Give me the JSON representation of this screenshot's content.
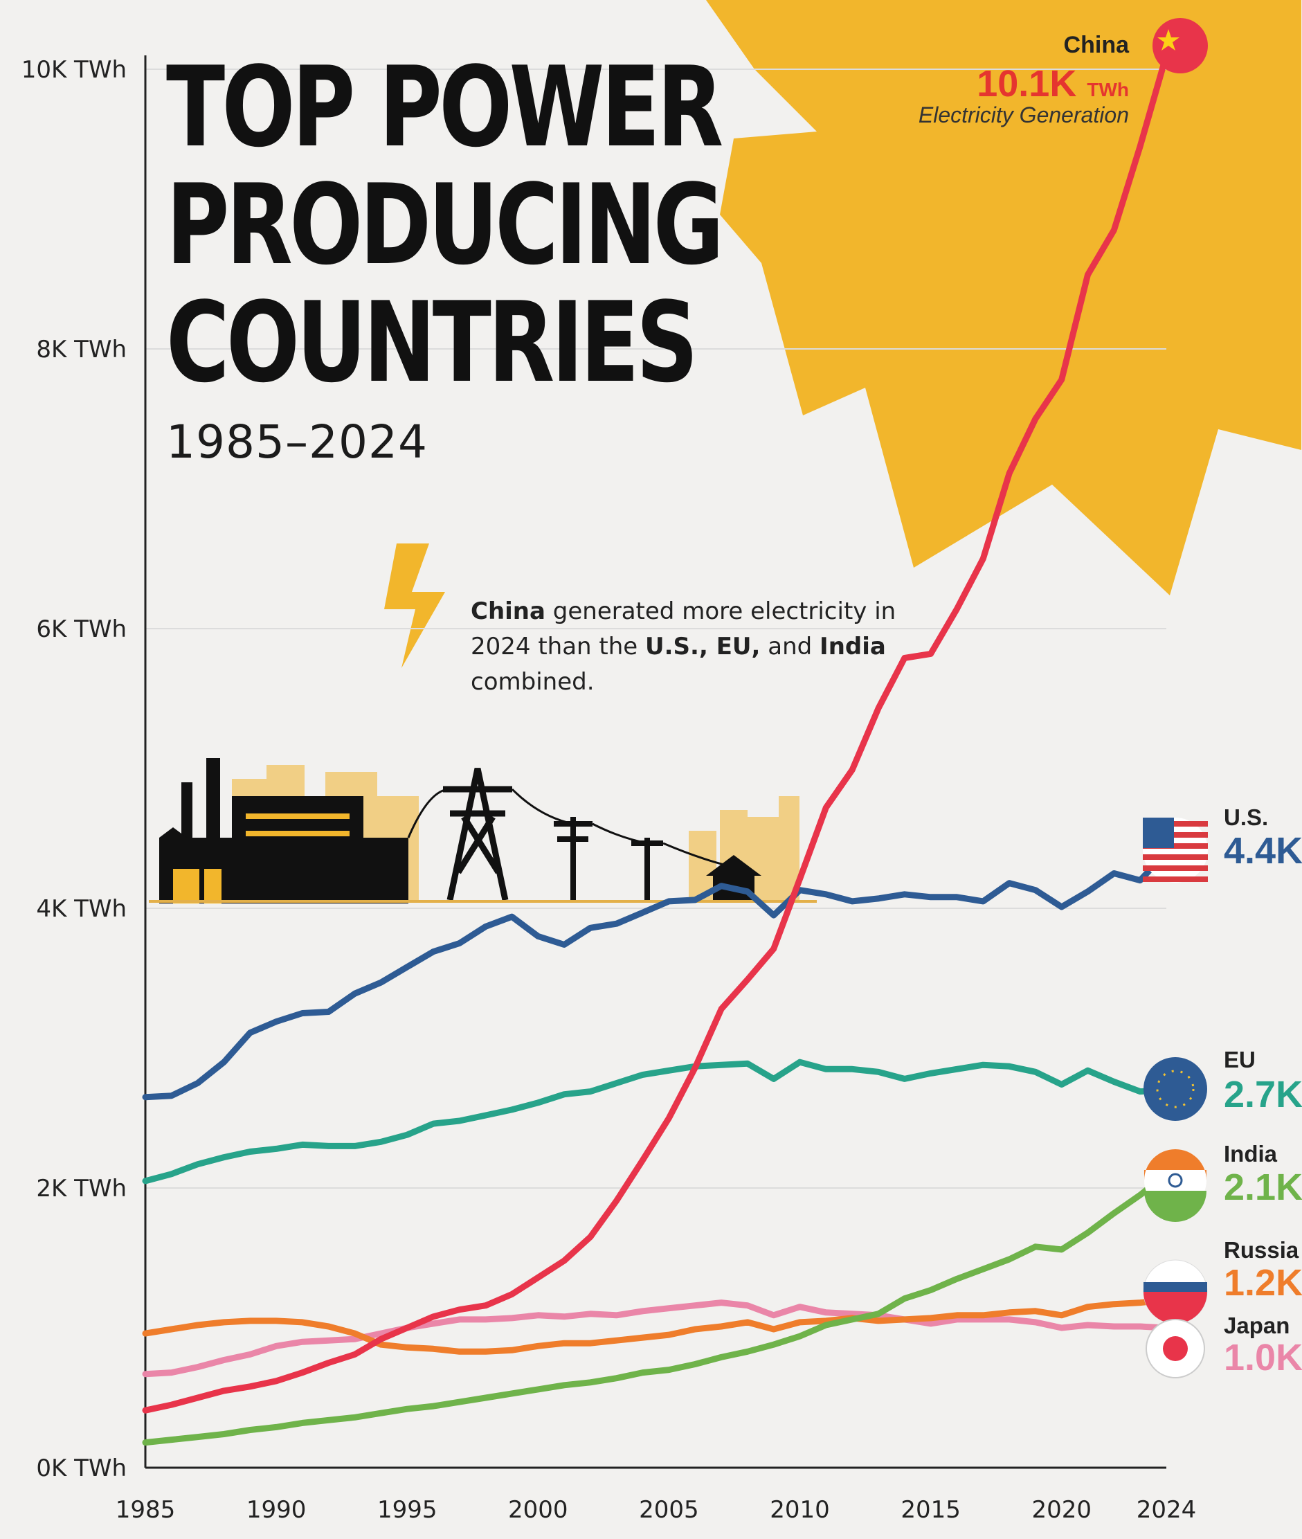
{
  "title_lines": [
    "TOP POWER",
    "PRODUCING",
    "COUNTRIES"
  ],
  "subtitle": "1985–2024",
  "callout": {
    "p1_bold": "China",
    "p1_text": " generated more electricity in 2024 than the ",
    "p2_bold": "U.S., EU,",
    "p2_text": " and ",
    "p3_bold": "India",
    "p3_text": " combined."
  },
  "china_label": {
    "name": "China",
    "value": "10.1K",
    "unit": "TWh",
    "note": "Electricity Generation"
  },
  "end_labels": [
    {
      "key": "us",
      "name": "U.S.",
      "value": "4.4K"
    },
    {
      "key": "eu",
      "name": "EU",
      "value": "2.7K"
    },
    {
      "key": "india",
      "name": "India",
      "value": "2.1K"
    },
    {
      "key": "russia",
      "name": "Russia",
      "value": "1.2K"
    },
    {
      "key": "japan",
      "name": "Japan",
      "value": "1.0K"
    }
  ],
  "icons": [
    "lightning-bolt-icon",
    "factory-icon",
    "power-pylon-icon",
    "utility-pole-icon",
    "house-icon",
    "china-flag-icon",
    "us-flag-icon",
    "eu-flag-icon",
    "india-flag-icon",
    "russia-flag-icon",
    "japan-flag-icon",
    "sun-burst-icon"
  ],
  "chart_data": {
    "type": "line",
    "title": "TOP POWER PRODUCING COUNTRIES",
    "subtitle": "1985–2024",
    "ylabel": "",
    "xlabel": "",
    "ylim": [
      0,
      10000
    ],
    "xlim": [
      1985,
      2024
    ],
    "yticks": [
      0,
      2000,
      4000,
      6000,
      8000,
      10000
    ],
    "ytick_labels": [
      "0K TWh",
      "2K TWh",
      "4K TWh",
      "6K TWh",
      "8K TWh",
      "10K TWh"
    ],
    "xticks": [
      1985,
      1990,
      1995,
      2000,
      2005,
      2010,
      2015,
      2020,
      2024
    ],
    "xtick_labels": [
      "1985",
      "1990",
      "1995",
      "2000",
      "2005",
      "2010",
      "2015",
      "2020",
      "2024"
    ],
    "grid": true,
    "series": [
      {
        "name": "China",
        "color": "#e8344a",
        "x": [
          1985,
          1986,
          1987,
          1988,
          1989,
          1990,
          1991,
          1992,
          1993,
          1994,
          1995,
          1996,
          1997,
          1998,
          1999,
          2000,
          2001,
          2002,
          2003,
          2004,
          2005,
          2006,
          2007,
          2008,
          2009,
          2010,
          2011,
          2012,
          2013,
          2014,
          2015,
          2016,
          2017,
          2018,
          2019,
          2020,
          2021,
          2022,
          2023,
          2024
        ],
        "y": [
          410,
          450,
          500,
          550,
          580,
          620,
          680,
          750,
          810,
          920,
          1000,
          1080,
          1130,
          1160,
          1240,
          1360,
          1480,
          1650,
          1910,
          2200,
          2500,
          2860,
          3280,
          3490,
          3710,
          4210,
          4720,
          4990,
          5430,
          5790,
          5820,
          6140,
          6500,
          7110,
          7500,
          7780,
          8530,
          8850,
          9450,
          10100
        ]
      },
      {
        "name": "U.S.",
        "color": "#2e5b94",
        "x": [
          1985,
          1986,
          1987,
          1988,
          1989,
          1990,
          1991,
          1992,
          1993,
          1994,
          1995,
          1996,
          1997,
          1998,
          1999,
          2000,
          2001,
          2002,
          2003,
          2004,
          2005,
          2006,
          2007,
          2008,
          2009,
          2010,
          2011,
          2012,
          2013,
          2014,
          2015,
          2016,
          2017,
          2018,
          2019,
          2020,
          2021,
          2022,
          2023,
          2024
        ],
        "y": [
          2650,
          2660,
          2750,
          2900,
          3110,
          3190,
          3250,
          3260,
          3390,
          3470,
          3580,
          3690,
          3750,
          3870,
          3940,
          3800,
          3740,
          3860,
          3890,
          3970,
          4050,
          4060,
          4160,
          4120,
          3950,
          4130,
          4100,
          4050,
          4070,
          4100,
          4080,
          4080,
          4050,
          4180,
          4130,
          4010,
          4120,
          4250,
          4200,
          4400
        ]
      },
      {
        "name": "EU",
        "color": "#27a38a",
        "x": [
          1985,
          1986,
          1987,
          1988,
          1989,
          1990,
          1991,
          1992,
          1993,
          1994,
          1995,
          1996,
          1997,
          1998,
          1999,
          2000,
          2001,
          2002,
          2003,
          2004,
          2005,
          2006,
          2007,
          2008,
          2009,
          2010,
          2011,
          2012,
          2013,
          2014,
          2015,
          2016,
          2017,
          2018,
          2019,
          2020,
          2021,
          2022,
          2023,
          2024
        ],
        "y": [
          2050,
          2100,
          2170,
          2220,
          2260,
          2280,
          2310,
          2300,
          2300,
          2330,
          2380,
          2460,
          2480,
          2520,
          2560,
          2610,
          2670,
          2690,
          2750,
          2810,
          2840,
          2870,
          2880,
          2890,
          2780,
          2900,
          2850,
          2850,
          2830,
          2780,
          2820,
          2850,
          2880,
          2870,
          2830,
          2740,
          2840,
          2760,
          2690,
          2700
        ]
      },
      {
        "name": "India",
        "color": "#6fb34a",
        "x": [
          1985,
          1986,
          1987,
          1988,
          1989,
          1990,
          1991,
          1992,
          1993,
          1994,
          1995,
          1996,
          1997,
          1998,
          1999,
          2000,
          2001,
          2002,
          2003,
          2004,
          2005,
          2006,
          2007,
          2008,
          2009,
          2010,
          2011,
          2012,
          2013,
          2014,
          2015,
          2016,
          2017,
          2018,
          2019,
          2020,
          2021,
          2022,
          2023,
          2024
        ],
        "y": [
          180,
          200,
          220,
          240,
          270,
          290,
          320,
          340,
          360,
          390,
          420,
          440,
          470,
          500,
          530,
          560,
          590,
          610,
          640,
          680,
          700,
          740,
          790,
          830,
          880,
          940,
          1020,
          1060,
          1100,
          1210,
          1270,
          1350,
          1420,
          1490,
          1580,
          1560,
          1680,
          1820,
          1950,
          2100
        ]
      },
      {
        "name": "Russia",
        "color": "#ef7d2b",
        "x": [
          1985,
          1986,
          1987,
          1988,
          1989,
          1990,
          1991,
          1992,
          1993,
          1994,
          1995,
          1996,
          1997,
          1998,
          1999,
          2000,
          2001,
          2002,
          2003,
          2004,
          2005,
          2006,
          2007,
          2008,
          2009,
          2010,
          2011,
          2012,
          2013,
          2014,
          2015,
          2016,
          2017,
          2018,
          2019,
          2020,
          2021,
          2022,
          2023,
          2024
        ],
        "y": [
          960,
          990,
          1020,
          1040,
          1050,
          1050,
          1040,
          1010,
          960,
          880,
          860,
          850,
          830,
          830,
          840,
          870,
          890,
          890,
          910,
          930,
          950,
          990,
          1010,
          1040,
          990,
          1040,
          1050,
          1070,
          1050,
          1060,
          1070,
          1090,
          1090,
          1110,
          1120,
          1090,
          1150,
          1170,
          1180,
          1200
        ]
      },
      {
        "name": "Japan",
        "color": "#ea86a8",
        "x": [
          1985,
          1986,
          1987,
          1988,
          1989,
          1990,
          1991,
          1992,
          1993,
          1994,
          1995,
          1996,
          1997,
          1998,
          1999,
          2000,
          2001,
          2002,
          2003,
          2004,
          2005,
          2006,
          2007,
          2008,
          2009,
          2010,
          2011,
          2012,
          2013,
          2014,
          2015,
          2016,
          2017,
          2018,
          2019,
          2020,
          2021,
          2022,
          2023,
          2024
        ],
        "y": [
          670,
          680,
          720,
          770,
          810,
          870,
          900,
          910,
          920,
          960,
          1000,
          1030,
          1060,
          1060,
          1070,
          1090,
          1080,
          1100,
          1090,
          1120,
          1140,
          1160,
          1180,
          1160,
          1090,
          1150,
          1110,
          1100,
          1090,
          1060,
          1030,
          1060,
          1060,
          1060,
          1040,
          1000,
          1020,
          1010,
          1010,
          1000
        ]
      }
    ]
  }
}
